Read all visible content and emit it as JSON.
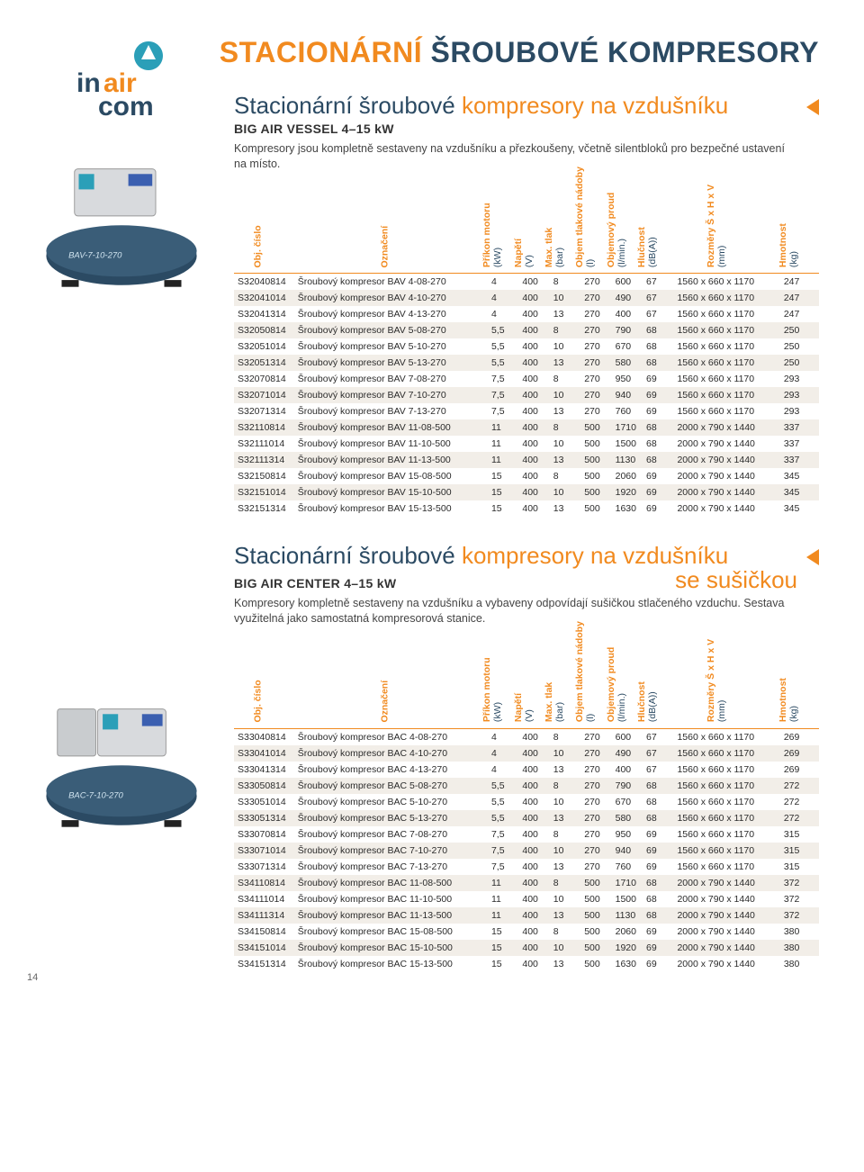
{
  "page_number": "14",
  "main_title_part1": "STACIONÁRNÍ ",
  "main_title_part2": "ŠROUBOVÉ KOMPRESORY",
  "columns": [
    {
      "label": "Obj. číslo",
      "unit": ""
    },
    {
      "label": "Označení",
      "unit": ""
    },
    {
      "label": "Příkon motoru",
      "unit": "(kW)"
    },
    {
      "label": "Napětí",
      "unit": "(V)"
    },
    {
      "label": "Max. tlak",
      "unit": "(bar)"
    },
    {
      "label": "Objem tlakové nádoby",
      "unit": "(l)"
    },
    {
      "label": "Objemový proud",
      "unit": "(l/min.)"
    },
    {
      "label": "Hlučnost",
      "unit": "(dB(A))"
    },
    {
      "label": "Rozměry Š x H x V",
      "unit": "(mm)"
    },
    {
      "label": "Hmotnost",
      "unit": "(kg)"
    }
  ],
  "section1": {
    "title_plain": "Stacionární šroubové ",
    "title_accent": "kompresory na vzdušníku",
    "subtitle": "BIG AIR VESSEL 4–15 kW",
    "desc": "Kompresory jsou kompletně sestaveny na vzdušníku a přezkoušeny, včetně silentbloků pro bezpečné ustavení na místo.",
    "rows": [
      [
        "S32040814",
        "Šroubový kompresor BAV 4-08-270",
        "4",
        "400",
        "8",
        "270",
        "600",
        "67",
        "1560 x 660 x 1170",
        "247"
      ],
      [
        "S32041014",
        "Šroubový kompresor BAV 4-10-270",
        "4",
        "400",
        "10",
        "270",
        "490",
        "67",
        "1560 x 660 x 1170",
        "247"
      ],
      [
        "S32041314",
        "Šroubový kompresor BAV 4-13-270",
        "4",
        "400",
        "13",
        "270",
        "400",
        "67",
        "1560 x 660 x 1170",
        "247"
      ],
      [
        "S32050814",
        "Šroubový kompresor BAV 5-08-270",
        "5,5",
        "400",
        "8",
        "270",
        "790",
        "68",
        "1560 x 660 x 1170",
        "250"
      ],
      [
        "S32051014",
        "Šroubový kompresor BAV 5-10-270",
        "5,5",
        "400",
        "10",
        "270",
        "670",
        "68",
        "1560 x 660 x 1170",
        "250"
      ],
      [
        "S32051314",
        "Šroubový kompresor BAV 5-13-270",
        "5,5",
        "400",
        "13",
        "270",
        "580",
        "68",
        "1560 x 660 x 1170",
        "250"
      ],
      [
        "S32070814",
        "Šroubový kompresor BAV 7-08-270",
        "7,5",
        "400",
        "8",
        "270",
        "950",
        "69",
        "1560 x 660 x 1170",
        "293"
      ],
      [
        "S32071014",
        "Šroubový kompresor BAV 7-10-270",
        "7,5",
        "400",
        "10",
        "270",
        "940",
        "69",
        "1560 x 660 x 1170",
        "293"
      ],
      [
        "S32071314",
        "Šroubový kompresor BAV 7-13-270",
        "7,5",
        "400",
        "13",
        "270",
        "760",
        "69",
        "1560 x 660 x 1170",
        "293"
      ],
      [
        "S32110814",
        "Šroubový kompresor BAV 11-08-500",
        "11",
        "400",
        "8",
        "500",
        "1710",
        "68",
        "2000 x 790 x 1440",
        "337"
      ],
      [
        "S32111014",
        "Šroubový kompresor BAV 11-10-500",
        "11",
        "400",
        "10",
        "500",
        "1500",
        "68",
        "2000 x 790 x 1440",
        "337"
      ],
      [
        "S32111314",
        "Šroubový kompresor BAV 11-13-500",
        "11",
        "400",
        "13",
        "500",
        "1130",
        "68",
        "2000 x 790 x 1440",
        "337"
      ],
      [
        "S32150814",
        "Šroubový kompresor BAV 15-08-500",
        "15",
        "400",
        "8",
        "500",
        "2060",
        "69",
        "2000 x 790 x 1440",
        "345"
      ],
      [
        "S32151014",
        "Šroubový kompresor BAV 15-10-500",
        "15",
        "400",
        "10",
        "500",
        "1920",
        "69",
        "2000 x 790 x 1440",
        "345"
      ],
      [
        "S32151314",
        "Šroubový kompresor BAV 15-13-500",
        "15",
        "400",
        "13",
        "500",
        "1630",
        "69",
        "2000 x 790 x 1440",
        "345"
      ]
    ]
  },
  "section2": {
    "title_plain": "Stacionární šroubové ",
    "title_accent": "kompresory na vzdušníku",
    "title_line2": "se sušičkou",
    "subtitle": "BIG AIR CENTER 4–15 kW",
    "desc": "Kompresory kompletně sestaveny na vzdušníku a vybaveny odpovídají sušičkou stlačeného vzduchu. Sestava využitelná jako samostatná kompresorová stanice.",
    "rows": [
      [
        "S33040814",
        "Šroubový kompresor BAC 4-08-270",
        "4",
        "400",
        "8",
        "270",
        "600",
        "67",
        "1560 x 660 x 1170",
        "269"
      ],
      [
        "S33041014",
        "Šroubový kompresor BAC 4-10-270",
        "4",
        "400",
        "10",
        "270",
        "490",
        "67",
        "1560 x 660 x 1170",
        "269"
      ],
      [
        "S33041314",
        "Šroubový kompresor BAC 4-13-270",
        "4",
        "400",
        "13",
        "270",
        "400",
        "67",
        "1560 x 660 x 1170",
        "269"
      ],
      [
        "S33050814",
        "Šroubový kompresor BAC 5-08-270",
        "5,5",
        "400",
        "8",
        "270",
        "790",
        "68",
        "1560 x 660 x 1170",
        "272"
      ],
      [
        "S33051014",
        "Šroubový kompresor BAC 5-10-270",
        "5,5",
        "400",
        "10",
        "270",
        "670",
        "68",
        "1560 x 660 x 1170",
        "272"
      ],
      [
        "S33051314",
        "Šroubový kompresor BAC 5-13-270",
        "5,5",
        "400",
        "13",
        "270",
        "580",
        "68",
        "1560 x 660 x 1170",
        "272"
      ],
      [
        "S33070814",
        "Šroubový kompresor BAC 7-08-270",
        "7,5",
        "400",
        "8",
        "270",
        "950",
        "69",
        "1560 x 660 x 1170",
        "315"
      ],
      [
        "S33071014",
        "Šroubový kompresor BAC 7-10-270",
        "7,5",
        "400",
        "10",
        "270",
        "940",
        "69",
        "1560 x 660 x 1170",
        "315"
      ],
      [
        "S33071314",
        "Šroubový kompresor BAC 7-13-270",
        "7,5",
        "400",
        "13",
        "270",
        "760",
        "69",
        "1560 x 660 x 1170",
        "315"
      ],
      [
        "S34110814",
        "Šroubový kompresor BAC 11-08-500",
        "11",
        "400",
        "8",
        "500",
        "1710",
        "68",
        "2000 x 790 x 1440",
        "372"
      ],
      [
        "S34111014",
        "Šroubový kompresor BAC 11-10-500",
        "11",
        "400",
        "10",
        "500",
        "1500",
        "68",
        "2000 x 790 x 1440",
        "372"
      ],
      [
        "S34111314",
        "Šroubový kompresor BAC 11-13-500",
        "11",
        "400",
        "13",
        "500",
        "1130",
        "68",
        "2000 x 790 x 1440",
        "372"
      ],
      [
        "S34150814",
        "Šroubový kompresor BAC 15-08-500",
        "15",
        "400",
        "8",
        "500",
        "2060",
        "69",
        "2000 x 790 x 1440",
        "380"
      ],
      [
        "S34151014",
        "Šroubový kompresor BAC 15-10-500",
        "15",
        "400",
        "10",
        "500",
        "1920",
        "69",
        "2000 x 790 x 1440",
        "380"
      ],
      [
        "S34151314",
        "Šroubový kompresor BAC 15-13-500",
        "15",
        "400",
        "13",
        "500",
        "1630",
        "69",
        "2000 x 790 x 1440",
        "380"
      ]
    ]
  },
  "logo": {
    "text1": "in",
    "text2": "air",
    "text3": "com"
  },
  "product_label_1": "BAV-7-10-270",
  "product_label_2": "BAC-7-10-270",
  "colors": {
    "accent": "#f18a1f",
    "dark": "#2b4a63",
    "row_alt": "#f2eee8"
  }
}
